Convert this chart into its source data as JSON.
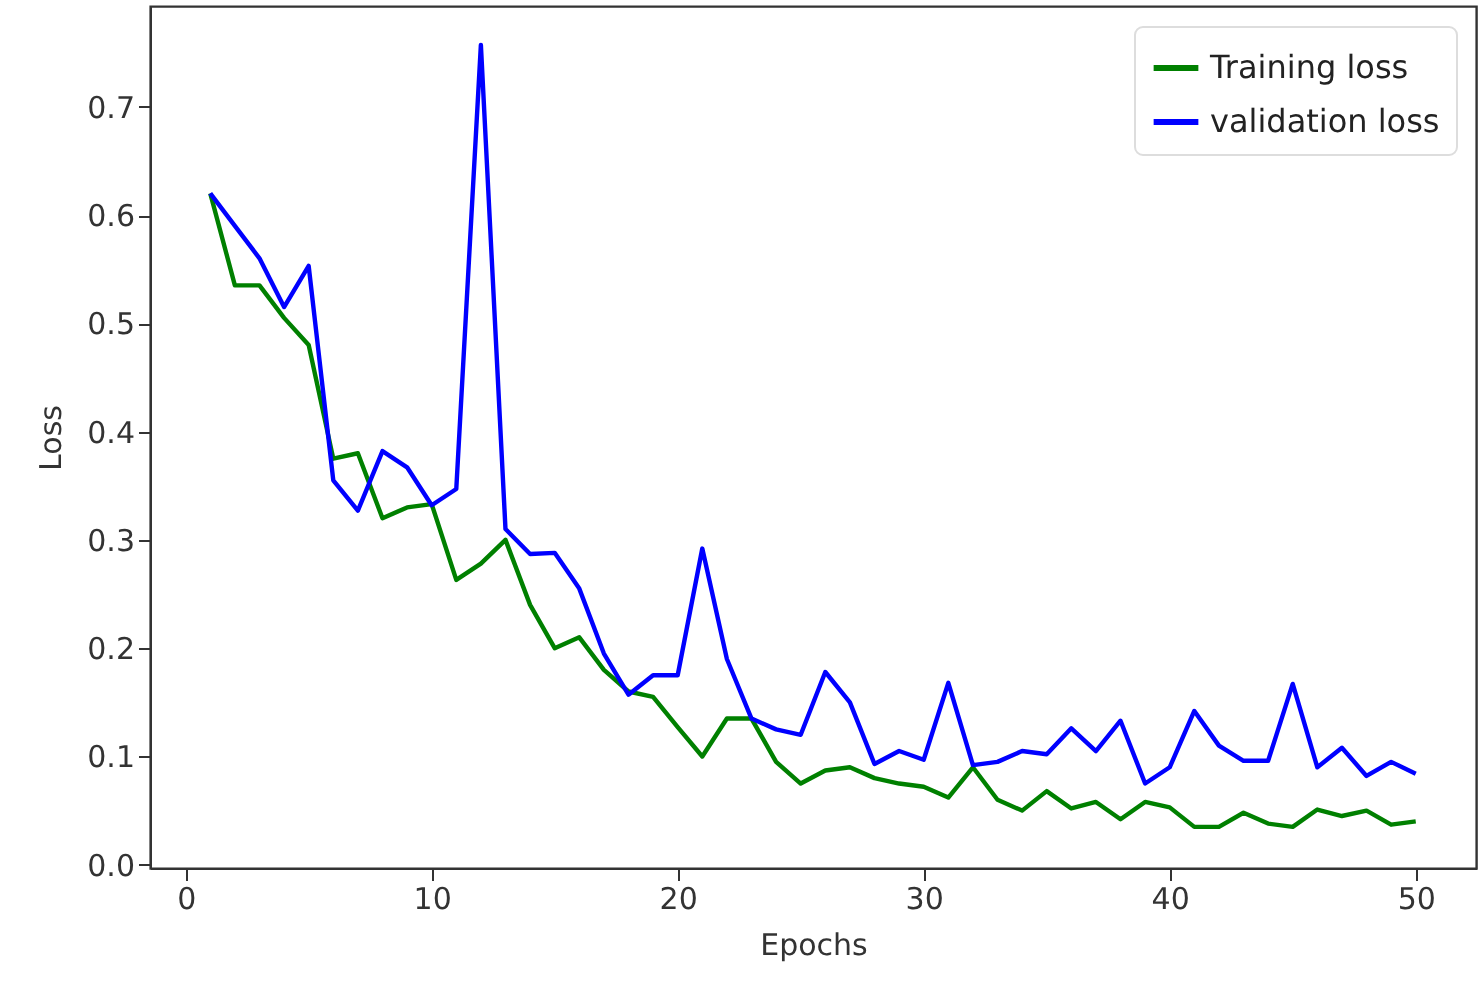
{
  "chart_data": {
    "type": "line",
    "xlabel": "Epochs",
    "ylabel": "Loss",
    "x": [
      1,
      2,
      3,
      4,
      5,
      6,
      7,
      8,
      9,
      10,
      11,
      12,
      13,
      14,
      15,
      16,
      17,
      18,
      19,
      20,
      21,
      22,
      23,
      24,
      25,
      26,
      27,
      28,
      29,
      30,
      31,
      32,
      33,
      34,
      35,
      36,
      37,
      38,
      39,
      40,
      41,
      42,
      43,
      44,
      45,
      46,
      47,
      48,
      49,
      50
    ],
    "series": [
      {
        "name": "Training loss",
        "color": "#008000",
        "values": [
          0.62,
          0.535,
          0.535,
          0.505,
          0.48,
          0.375,
          0.38,
          0.32,
          0.33,
          0.333,
          0.263,
          0.278,
          0.3,
          0.24,
          0.2,
          0.21,
          0.18,
          0.16,
          0.155,
          0.127,
          0.1,
          0.135,
          0.135,
          0.095,
          0.075,
          0.087,
          0.09,
          0.08,
          0.075,
          0.072,
          0.062,
          0.09,
          0.06,
          0.05,
          0.068,
          0.052,
          0.058,
          0.042,
          0.058,
          0.053,
          0.035,
          0.035,
          0.048,
          0.038,
          0.035,
          0.051,
          0.045,
          0.05,
          0.037,
          0.04
        ]
      },
      {
        "name": "validation loss",
        "color": "#0000ff",
        "values": [
          0.62,
          0.59,
          0.56,
          0.515,
          0.553,
          0.355,
          0.327,
          0.382,
          0.367,
          0.332,
          0.347,
          0.757,
          0.31,
          0.287,
          0.288,
          0.255,
          0.195,
          0.157,
          0.175,
          0.175,
          0.292,
          0.19,
          0.135,
          0.125,
          0.12,
          0.178,
          0.15,
          0.093,
          0.105,
          0.097,
          0.168,
          0.092,
          0.095,
          0.105,
          0.102,
          0.126,
          0.105,
          0.133,
          0.075,
          0.09,
          0.142,
          0.11,
          0.096,
          0.096,
          0.167,
          0.09,
          0.108,
          0.082,
          0.095,
          0.084
        ]
      }
    ],
    "xlim": [
      -1.45,
      52.45
    ],
    "ylim": [
      -0.003,
      0.793
    ],
    "xticks": [
      0,
      10,
      20,
      30,
      40,
      50
    ],
    "yticks": [
      {
        "value": 0,
        "label": "0.0"
      },
      {
        "value": 0.1,
        "label": "0.1"
      },
      {
        "value": 0.2,
        "label": "0.2"
      },
      {
        "value": 0.3,
        "label": "0.3"
      },
      {
        "value": 0.4,
        "label": "0.4"
      },
      {
        "value": 0.5,
        "label": "0.5"
      },
      {
        "value": 0.6,
        "label": "0.6"
      },
      {
        "value": 0.7,
        "label": "0.7"
      }
    ],
    "legend": "top right",
    "marker": "none",
    "line_style": "solid"
  }
}
